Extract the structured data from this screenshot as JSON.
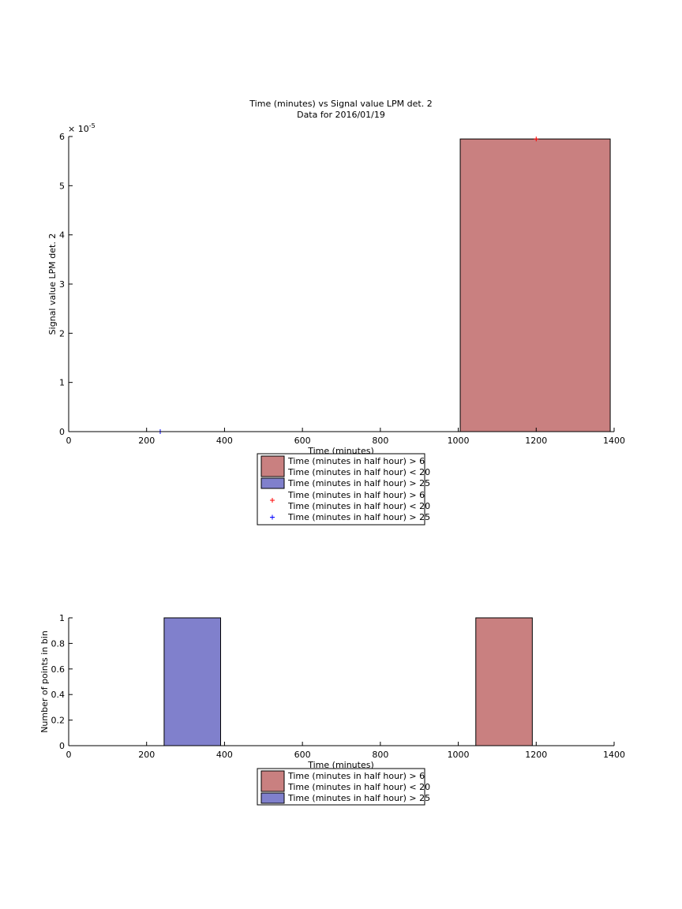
{
  "chart_data": [
    {
      "type": "bar",
      "title": "Time (minutes) vs Signal value LPM det. 2",
      "subtitle": "Data for 2016/01/19",
      "xlabel": "Time (minutes)",
      "ylabel": "Signal value LPM det. 2",
      "xlim": [
        0,
        1400
      ],
      "ylim": [
        0,
        6
      ],
      "y_exponent_label": "× 10",
      "y_exponent": "-5",
      "xticks": [
        0,
        200,
        400,
        600,
        800,
        1000,
        1200,
        1400
      ],
      "yticks": [
        0,
        1,
        2,
        3,
        4,
        5,
        6
      ],
      "bars": [
        {
          "x0": 1005,
          "x1": 1390,
          "value": 5.95,
          "color": "#c98080"
        }
      ],
      "points": [
        {
          "x": 1200,
          "y": 5.95,
          "color": "#ff0000",
          "marker": "+"
        },
        {
          "x": 235,
          "y": 0.0,
          "color": "#0000ff",
          "marker": "+"
        }
      ],
      "legend": [
        {
          "kind": "patch",
          "color": "#c98080",
          "line1": "Time (minutes in half hour) > 6",
          "line2": "Time (minutes in half hour) < 20"
        },
        {
          "kind": "patch",
          "color": "#8080cc",
          "line1": "Time (minutes in half hour) > 25",
          "line2": ""
        },
        {
          "kind": "marker",
          "color": "#ff0000",
          "line1": "Time (minutes in half hour) > 6",
          "line2": "Time (minutes in half hour) < 20"
        },
        {
          "kind": "marker",
          "color": "#0000ff",
          "line1": "Time (minutes in half hour) > 25",
          "line2": ""
        }
      ]
    },
    {
      "type": "bar",
      "title": "",
      "xlabel": "Time (minutes)",
      "ylabel": "Number of points in bin",
      "xlim": [
        0,
        1400
      ],
      "ylim": [
        0,
        1
      ],
      "xticks": [
        0,
        200,
        400,
        600,
        800,
        1000,
        1200,
        1400
      ],
      "yticks": [
        0,
        0.2,
        0.4,
        0.6,
        0.8,
        1
      ],
      "bars": [
        {
          "x0": 245,
          "x1": 390,
          "value": 1,
          "color": "#8080cc"
        },
        {
          "x0": 1045,
          "x1": 1190,
          "value": 1,
          "color": "#c98080"
        }
      ],
      "legend": [
        {
          "kind": "patch",
          "color": "#c98080",
          "line1": "Time (minutes in half hour) > 6",
          "line2": "Time (minutes in half hour) < 20"
        },
        {
          "kind": "patch",
          "color": "#8080cc",
          "line1": "Time (minutes in half hour) > 25",
          "line2": ""
        }
      ]
    }
  ]
}
